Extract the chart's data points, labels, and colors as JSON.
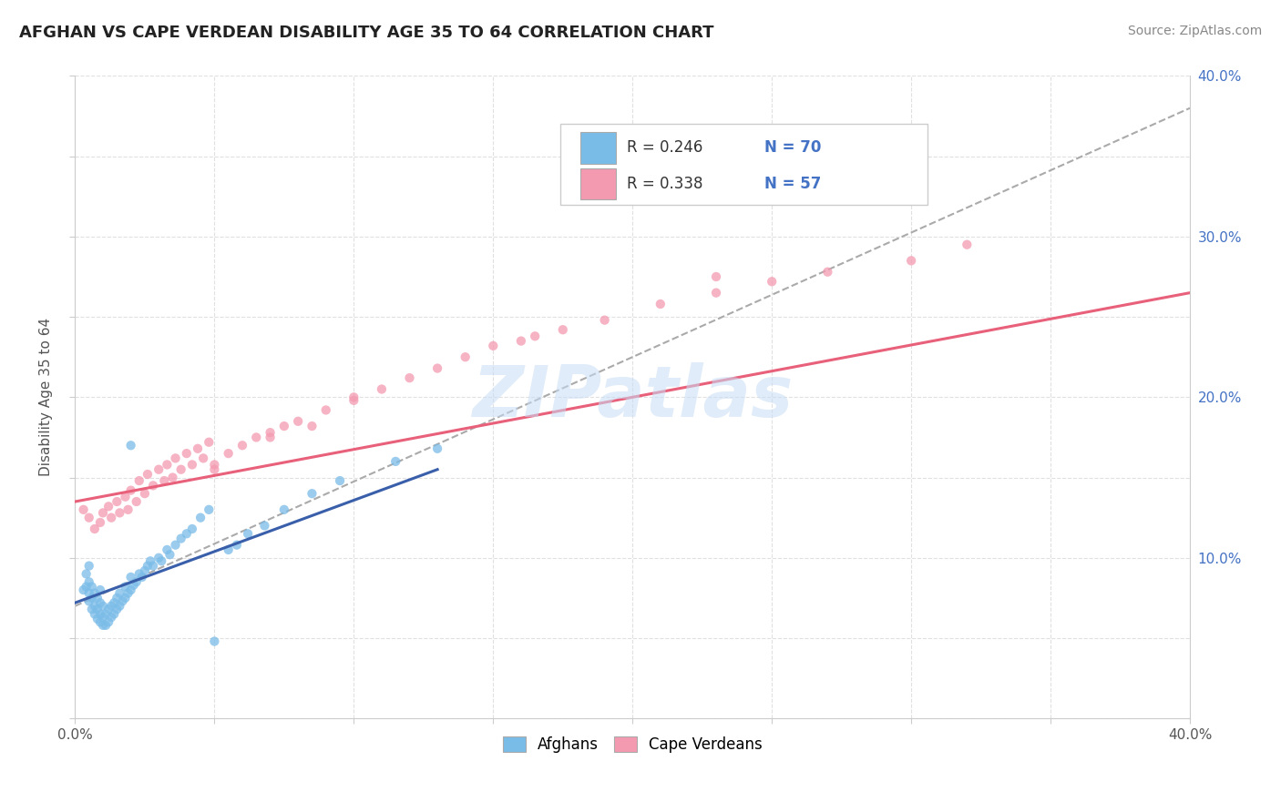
{
  "title": "AFGHAN VS CAPE VERDEAN DISABILITY AGE 35 TO 64 CORRELATION CHART",
  "source": "Source: ZipAtlas.com",
  "ylabel": "Disability Age 35 to 64",
  "xlim": [
    0.0,
    0.4
  ],
  "ylim": [
    0.0,
    0.4
  ],
  "xtick_positions": [
    0.0,
    0.05,
    0.1,
    0.15,
    0.2,
    0.25,
    0.3,
    0.35,
    0.4
  ],
  "xtick_labels": [
    "0.0%",
    "",
    "",
    "",
    "",
    "",
    "",
    "",
    "40.0%"
  ],
  "ytick_positions": [
    0.0,
    0.05,
    0.1,
    0.15,
    0.2,
    0.25,
    0.3,
    0.35,
    0.4
  ],
  "right_ytick_labels": [
    "",
    "",
    "10.0%",
    "",
    "20.0%",
    "",
    "30.0%",
    "",
    "40.0%"
  ],
  "legend_R1": "R = 0.246",
  "legend_N1": "N = 70",
  "legend_R2": "R = 0.338",
  "legend_N2": "N = 57",
  "afghan_color": "#7abce8",
  "cape_verdean_color": "#f49ab0",
  "afghan_line_color": "#3a5faa",
  "cape_verdean_line_color": "#e8607a",
  "dashed_line_color": "#aaaaaa",
  "watermark": "ZIPatlas",
  "background_color": "#ffffff",
  "grid_color": "#e0e0e0",
  "title_color": "#222222",
  "right_axis_color": "#4472c4",
  "afghan_trend_x": [
    0.0,
    0.13
  ],
  "afghan_trend_y": [
    0.072,
    0.155
  ],
  "cape_verdean_trend_x": [
    0.0,
    0.4
  ],
  "cape_verdean_trend_y": [
    0.135,
    0.265
  ],
  "dashed_trend_x": [
    0.0,
    0.4
  ],
  "dashed_trend_y": [
    0.07,
    0.38
  ],
  "afghans_x": [
    0.003,
    0.004,
    0.004,
    0.005,
    0.005,
    0.005,
    0.005,
    0.006,
    0.006,
    0.006,
    0.007,
    0.007,
    0.007,
    0.008,
    0.008,
    0.008,
    0.009,
    0.009,
    0.009,
    0.009,
    0.01,
    0.01,
    0.01,
    0.011,
    0.011,
    0.012,
    0.012,
    0.013,
    0.013,
    0.014,
    0.014,
    0.015,
    0.015,
    0.016,
    0.016,
    0.017,
    0.018,
    0.018,
    0.019,
    0.02,
    0.02,
    0.021,
    0.022,
    0.023,
    0.024,
    0.025,
    0.026,
    0.027,
    0.028,
    0.03,
    0.031,
    0.033,
    0.034,
    0.036,
    0.038,
    0.04,
    0.042,
    0.045,
    0.048,
    0.05,
    0.055,
    0.058,
    0.062,
    0.068,
    0.075,
    0.085,
    0.095,
    0.115,
    0.13,
    0.02
  ],
  "afghans_y": [
    0.08,
    0.082,
    0.09,
    0.073,
    0.078,
    0.085,
    0.095,
    0.068,
    0.075,
    0.082,
    0.065,
    0.07,
    0.078,
    0.062,
    0.068,
    0.075,
    0.06,
    0.065,
    0.072,
    0.08,
    0.058,
    0.063,
    0.07,
    0.058,
    0.065,
    0.06,
    0.068,
    0.063,
    0.07,
    0.065,
    0.072,
    0.068,
    0.075,
    0.07,
    0.078,
    0.073,
    0.075,
    0.082,
    0.078,
    0.08,
    0.088,
    0.083,
    0.085,
    0.09,
    0.088,
    0.092,
    0.095,
    0.098,
    0.095,
    0.1,
    0.098,
    0.105,
    0.102,
    0.108,
    0.112,
    0.115,
    0.118,
    0.125,
    0.13,
    0.048,
    0.105,
    0.108,
    0.115,
    0.12,
    0.13,
    0.14,
    0.148,
    0.16,
    0.168,
    0.17
  ],
  "cape_verdeans_x": [
    0.003,
    0.005,
    0.007,
    0.009,
    0.01,
    0.012,
    0.013,
    0.015,
    0.016,
    0.018,
    0.019,
    0.02,
    0.022,
    0.023,
    0.025,
    0.026,
    0.028,
    0.03,
    0.032,
    0.033,
    0.035,
    0.036,
    0.038,
    0.04,
    0.042,
    0.044,
    0.046,
    0.048,
    0.05,
    0.055,
    0.06,
    0.065,
    0.07,
    0.075,
    0.08,
    0.09,
    0.1,
    0.11,
    0.12,
    0.13,
    0.14,
    0.15,
    0.16,
    0.175,
    0.19,
    0.21,
    0.23,
    0.25,
    0.27,
    0.3,
    0.32,
    0.05,
    0.07,
    0.085,
    0.1,
    0.165,
    0.23
  ],
  "cape_verdeans_y": [
    0.13,
    0.125,
    0.118,
    0.122,
    0.128,
    0.132,
    0.125,
    0.135,
    0.128,
    0.138,
    0.13,
    0.142,
    0.135,
    0.148,
    0.14,
    0.152,
    0.145,
    0.155,
    0.148,
    0.158,
    0.15,
    0.162,
    0.155,
    0.165,
    0.158,
    0.168,
    0.162,
    0.172,
    0.158,
    0.165,
    0.17,
    0.175,
    0.178,
    0.182,
    0.185,
    0.192,
    0.198,
    0.205,
    0.212,
    0.218,
    0.225,
    0.232,
    0.235,
    0.242,
    0.248,
    0.258,
    0.265,
    0.272,
    0.278,
    0.285,
    0.295,
    0.155,
    0.175,
    0.182,
    0.2,
    0.238,
    0.275
  ],
  "marker_size": 55,
  "marker_alpha": 0.75
}
